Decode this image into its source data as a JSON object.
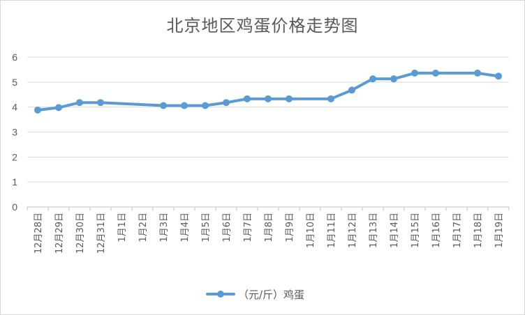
{
  "chart_data": {
    "type": "line",
    "title": "北京地区鸡蛋价格走势图",
    "categories": [
      "12月28日",
      "12月29日",
      "12月30日",
      "12月31日",
      "1月1日",
      "1月2日",
      "1月3日",
      "1月4日",
      "1月5日",
      "1月6日",
      "1月7日",
      "1月8日",
      "1月9日",
      "1月10日",
      "1月11日",
      "1月12日",
      "1月13日",
      "1月14日",
      "1月15日",
      "1月16日",
      "1月17日",
      "1月18日",
      "1月19日"
    ],
    "series": [
      {
        "name": "（元/斤）鸡蛋",
        "color": "#5b9bd5",
        "values": [
          3.88,
          3.98,
          4.18,
          4.18,
          null,
          null,
          4.06,
          4.06,
          4.06,
          4.18,
          4.33,
          4.33,
          4.33,
          null,
          4.33,
          4.68,
          5.13,
          5.13,
          5.36,
          5.36,
          null,
          5.36,
          5.24
        ]
      }
    ],
    "yticks": [
      0,
      1,
      2,
      3,
      4,
      5,
      6
    ],
    "ylim": [
      0,
      6
    ],
    "grid": true,
    "legend_position": "bottom"
  }
}
